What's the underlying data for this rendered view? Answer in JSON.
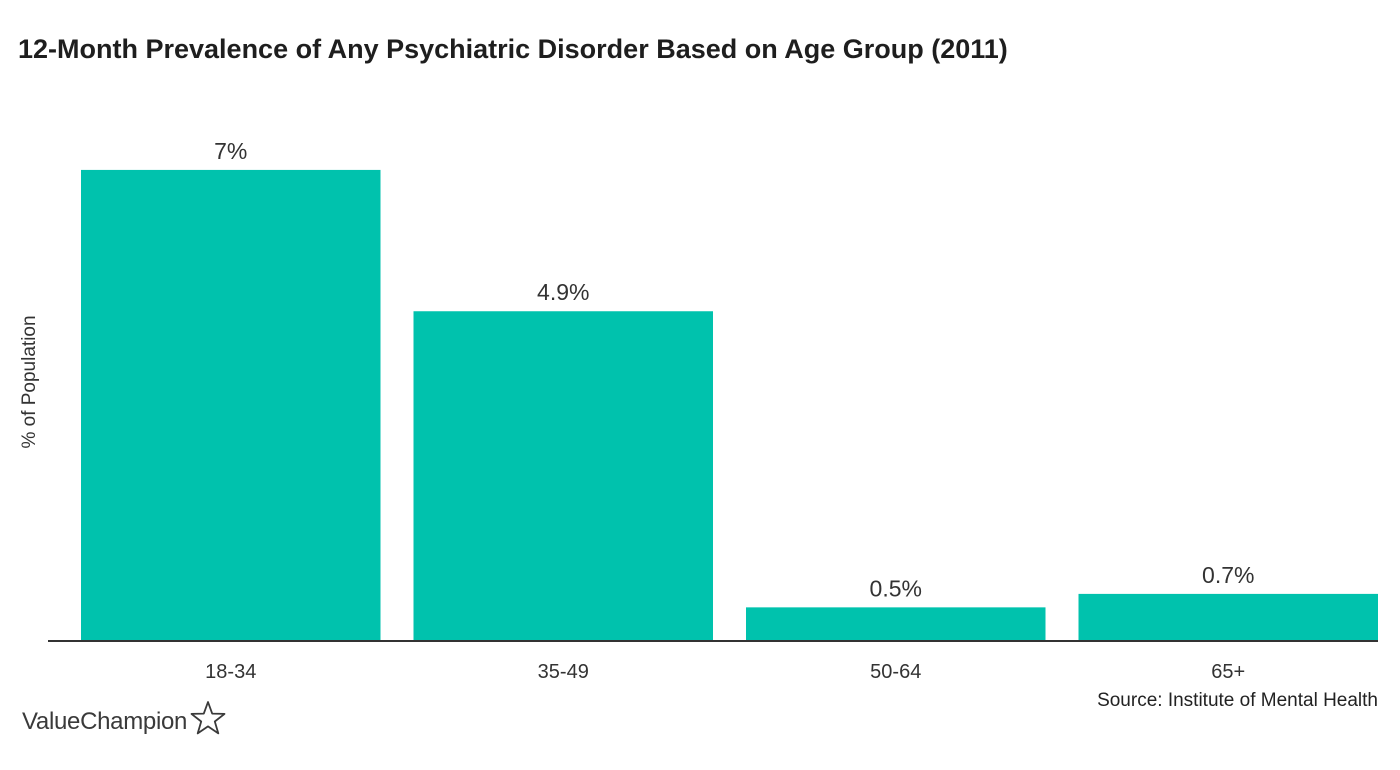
{
  "chart_data": {
    "type": "bar",
    "title": "12-Month Prevalence of Any Psychiatric Disorder Based on Age Group (2011)",
    "xlabel": "",
    "ylabel": "% of Population",
    "categories": [
      "18-34",
      "35-49",
      "50-64",
      "65+"
    ],
    "values": [
      7,
      4.9,
      0.5,
      0.7
    ],
    "value_labels": [
      "7%",
      "4.9%",
      "0.5%",
      "0.7%"
    ],
    "ylim": [
      0,
      7.4
    ],
    "grid": false,
    "legend": "none",
    "bar_color": "#00c2ad",
    "axis_color": "#333333"
  },
  "source": "Source: Institute of Mental Health",
  "brand": {
    "name": "ValueChampion",
    "icon": "star-outline-icon"
  }
}
